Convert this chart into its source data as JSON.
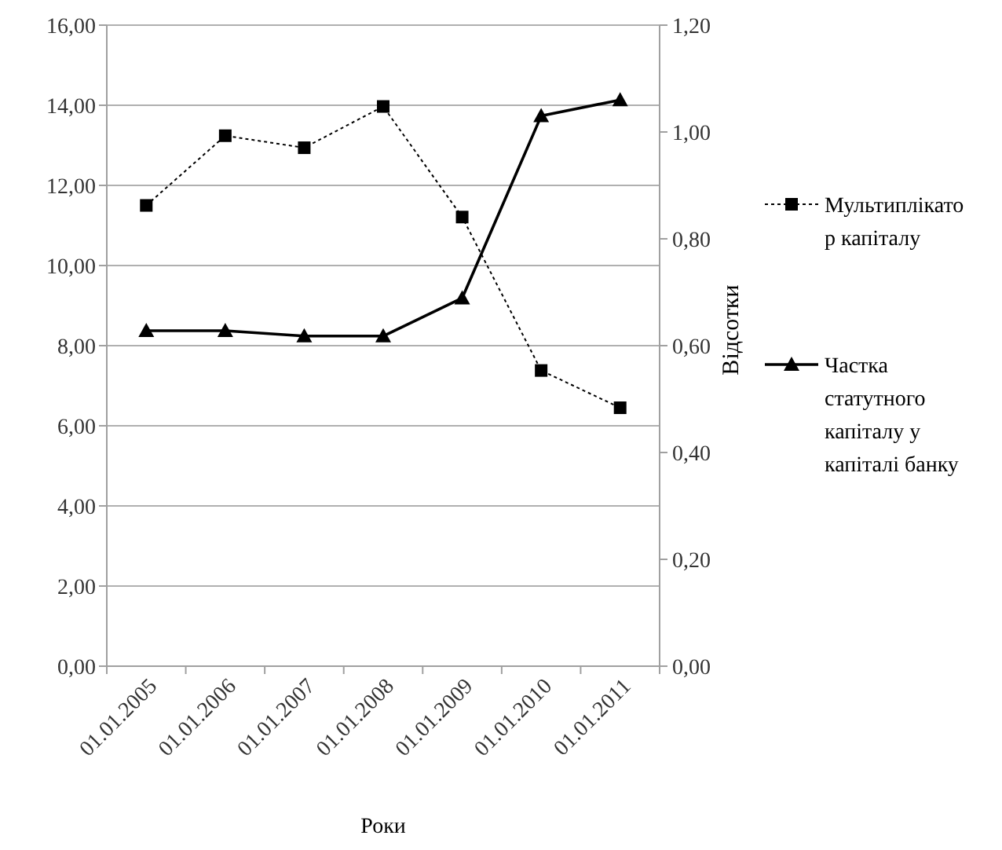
{
  "chart_data": {
    "type": "line",
    "xlabel": "Роки",
    "y2label": "Відсотки",
    "categories": [
      "01.01.2005",
      "01.01.2006",
      "01.01.2007",
      "01.01.2008",
      "01.01.2009",
      "01.01.2010",
      "01.01.2011"
    ],
    "ylim": [
      0,
      16
    ],
    "yticks": [
      {
        "value": 0,
        "label": "0,00"
      },
      {
        "value": 2,
        "label": "2,00"
      },
      {
        "value": 4,
        "label": "4,00"
      },
      {
        "value": 6,
        "label": "6,00"
      },
      {
        "value": 8,
        "label": "8,00"
      },
      {
        "value": 10,
        "label": "10,00"
      },
      {
        "value": 12,
        "label": "12,00"
      },
      {
        "value": 14,
        "label": "14,00"
      },
      {
        "value": 16,
        "label": "16,00"
      }
    ],
    "y2lim": [
      0,
      1.2
    ],
    "y2ticks": [
      {
        "value": 0,
        "label": "0,00"
      },
      {
        "value": 0.2,
        "label": "0,20"
      },
      {
        "value": 0.4,
        "label": "0,40"
      },
      {
        "value": 0.6,
        "label": "0,60"
      },
      {
        "value": 0.8,
        "label": "0,80"
      },
      {
        "value": 1,
        "label": "1,00"
      },
      {
        "value": 1.2,
        "label": "1,20"
      }
    ],
    "grid": "y",
    "legend": "right",
    "series": [
      {
        "name": "Мультиплікатор капіталу",
        "color": "#000000",
        "marker": "square",
        "line_style": "dotted",
        "values": [
          11.5,
          13.24,
          12.94,
          13.97,
          11.21,
          7.38,
          6.45
        ]
      },
      {
        "name": "Частка статутного капіталу у капіталі банку",
        "color": "#000000",
        "marker": "triangle",
        "line_style": "solid",
        "axis": "y2",
        "values": [
          0.628,
          0.628,
          0.618,
          0.618,
          0.689,
          1.03,
          1.06
        ]
      }
    ]
  }
}
